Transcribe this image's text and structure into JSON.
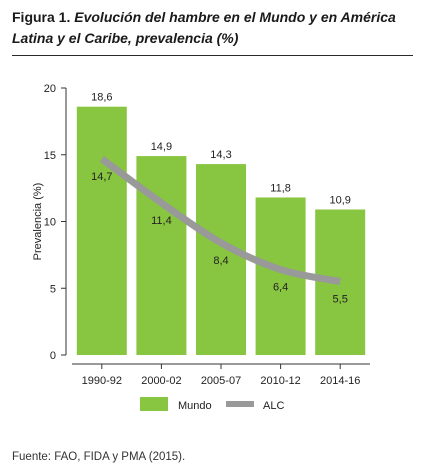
{
  "figure": {
    "number": "Figura 1.",
    "title": "Evolución del hambre en el Mundo y en América Latina y el Caribe, prevalencia (%)"
  },
  "source": "Fuente: FAO, FIDA y PMA (2015).",
  "chart_data": {
    "type": "bar",
    "categories": [
      "1990-92",
      "2000-02",
      "2005-07",
      "2010-12",
      "2014-16"
    ],
    "ylabel": "Prevalencia (%)",
    "xlabel": "",
    "ylim": [
      0,
      20
    ],
    "yticks": [
      0,
      5,
      10,
      15,
      20
    ],
    "legend_position": "bottom",
    "series": [
      {
        "name": "Mundo",
        "type": "bar",
        "color": "#88c540",
        "values": [
          18.6,
          14.9,
          14.3,
          11.8,
          10.9
        ],
        "labels": [
          "18,6",
          "14,9",
          "14,3",
          "11,8",
          "10,9"
        ]
      },
      {
        "name": "ALC",
        "type": "line",
        "color": "#999999",
        "values": [
          14.7,
          11.4,
          8.4,
          6.4,
          5.5
        ],
        "labels": [
          "14,7",
          "11,4",
          "8,4",
          "6,4",
          "5,5"
        ]
      }
    ]
  }
}
